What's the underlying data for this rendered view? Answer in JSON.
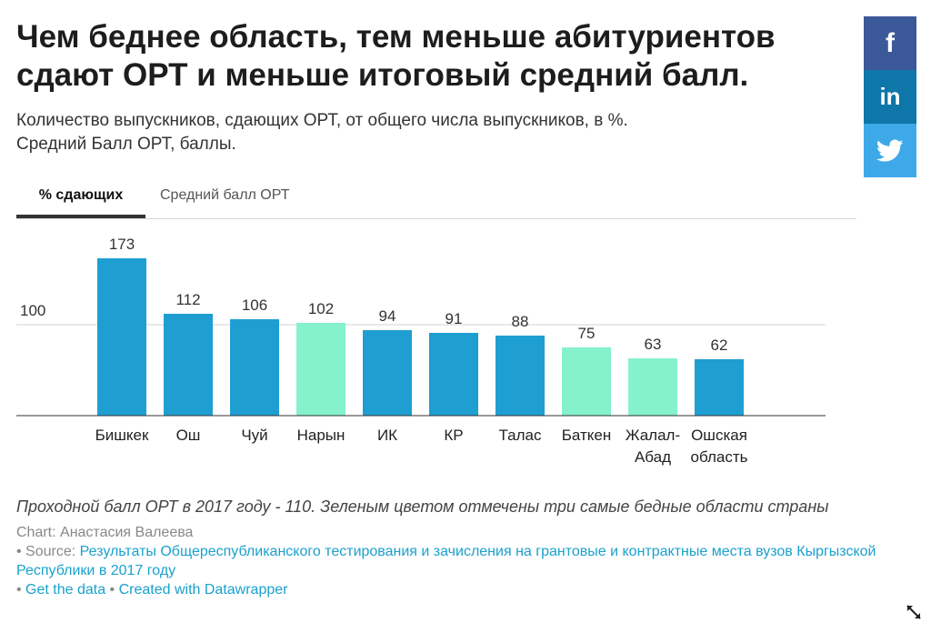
{
  "title": "Чем беднее область, тем меньше абитуриентов сдают ОРТ и меньше итоговый средний балл.",
  "subtitle_line1": "Количество выпускников, сдающих ОРТ, от общего числа выпускников, в %.",
  "subtitle_line2": "Средний Балл ОРТ, баллы.",
  "tabs": [
    {
      "label": "% сдающих",
      "active": true
    },
    {
      "label": "Средний балл ОРТ",
      "active": false
    }
  ],
  "social": {
    "facebook": "f",
    "linkedin": "in",
    "twitter_icon": "twitter-bird"
  },
  "colors": {
    "normal": "#1f9ed2",
    "poor": "#85f2cc",
    "grid": "#d0d0d0",
    "baseline": "#333333"
  },
  "chart_data": {
    "type": "bar",
    "categories": [
      "Бишкек",
      "Ош",
      "Чуй",
      "Нарын",
      "ИК",
      "КР",
      "Талас",
      "Баткен",
      "Жалал-Абад",
      "Ошская область"
    ],
    "category_lines": [
      [
        "Бишкек"
      ],
      [
        "Ош"
      ],
      [
        "Чуй"
      ],
      [
        "Нарын"
      ],
      [
        "ИК"
      ],
      [
        "КР"
      ],
      [
        "Талас"
      ],
      [
        "Баткен"
      ],
      [
        "Жалал-",
        "Абад"
      ],
      [
        "Ошская",
        "область"
      ]
    ],
    "values": [
      173,
      112,
      106,
      102,
      94,
      91,
      88,
      75,
      63,
      62
    ],
    "highlight": [
      false,
      false,
      false,
      true,
      false,
      false,
      false,
      true,
      true,
      false
    ],
    "value_labels": [
      "173",
      "112",
      "106",
      "102",
      "94",
      "91",
      "88",
      "75",
      "63",
      "62"
    ],
    "reference_line": {
      "value": 100,
      "label": "100"
    },
    "ylim": [
      0,
      173
    ],
    "grid": false,
    "legend": "none"
  },
  "notes": "Проходной балл ОРТ в 2017 году - 110. Зеленым цветом отмечены три самые бедные области страны",
  "chart_credit": "Chart: Анастасия Валеева",
  "source_prefix": "• Source: ",
  "source_link": "Результаты Общереспубликанского тестирования и зачисления на грантовые и контрактные места вузов Кыргызской Республики в 2017 году",
  "get_data_prefix": "• ",
  "get_data": "Get the data",
  "separator": " • ",
  "created_with": "Created with Datawrapper"
}
